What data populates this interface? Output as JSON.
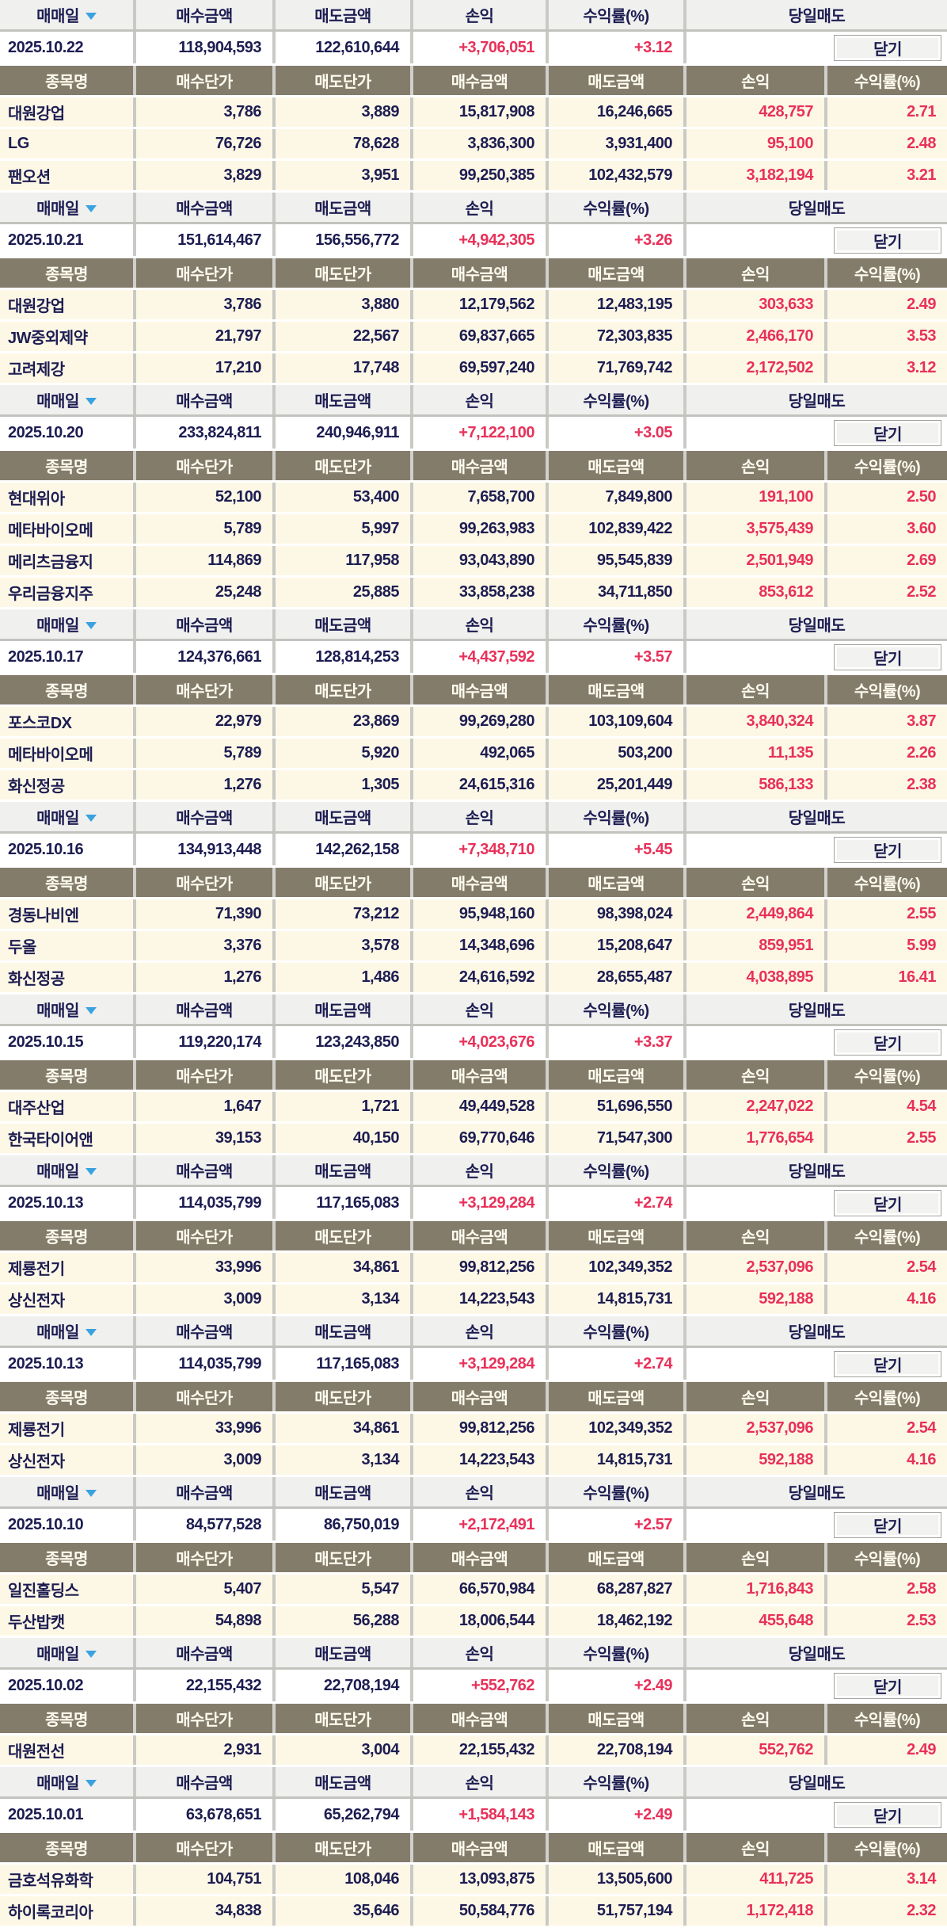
{
  "colors": {
    "accent_red": "#e8315a",
    "navy_text": "#1d1d52",
    "subheader_bg": "#847c6b",
    "stock_row_bg": "#fdf8e6",
    "header_bg": "#f0f0ef",
    "sort_arrow_blue": "#3aa2df"
  },
  "labels": {
    "date_header": [
      "매매일",
      "매수금액",
      "매도금액",
      "손익",
      "수익률(%)",
      "당일매도"
    ],
    "stock_header": [
      "종목명",
      "매수단가",
      "매도단가",
      "매수금액",
      "매도금액",
      "손익",
      "수익률(%)"
    ],
    "close": "닫기"
  },
  "sections": [
    {
      "date": "2025.10.22",
      "buy_amount": "118,904,593",
      "sell_amount": "122,610,644",
      "profit": "+3,706,051",
      "return_pct": "+3.12",
      "stocks": [
        {
          "name": "대원강업",
          "buy_price": "3,786",
          "sell_price": "3,889",
          "buy_amount": "15,817,908",
          "sell_amount": "16,246,665",
          "profit": "428,757",
          "return_pct": "2.71"
        },
        {
          "name": "LG",
          "buy_price": "76,726",
          "sell_price": "78,628",
          "buy_amount": "3,836,300",
          "sell_amount": "3,931,400",
          "profit": "95,100",
          "return_pct": "2.48"
        },
        {
          "name": "팬오션",
          "buy_price": "3,829",
          "sell_price": "3,951",
          "buy_amount": "99,250,385",
          "sell_amount": "102,432,579",
          "profit": "3,182,194",
          "return_pct": "3.21"
        }
      ]
    },
    {
      "date": "2025.10.21",
      "buy_amount": "151,614,467",
      "sell_amount": "156,556,772",
      "profit": "+4,942,305",
      "return_pct": "+3.26",
      "stocks": [
        {
          "name": "대원강업",
          "buy_price": "3,786",
          "sell_price": "3,880",
          "buy_amount": "12,179,562",
          "sell_amount": "12,483,195",
          "profit": "303,633",
          "return_pct": "2.49"
        },
        {
          "name": "JW중외제약",
          "buy_price": "21,797",
          "sell_price": "22,567",
          "buy_amount": "69,837,665",
          "sell_amount": "72,303,835",
          "profit": "2,466,170",
          "return_pct": "3.53"
        },
        {
          "name": "고려제강",
          "buy_price": "17,210",
          "sell_price": "17,748",
          "buy_amount": "69,597,240",
          "sell_amount": "71,769,742",
          "profit": "2,172,502",
          "return_pct": "3.12"
        }
      ]
    },
    {
      "date": "2025.10.20",
      "buy_amount": "233,824,811",
      "sell_amount": "240,946,911",
      "profit": "+7,122,100",
      "return_pct": "+3.05",
      "stocks": [
        {
          "name": "현대위아",
          "buy_price": "52,100",
          "sell_price": "53,400",
          "buy_amount": "7,658,700",
          "sell_amount": "7,849,800",
          "profit": "191,100",
          "return_pct": "2.50"
        },
        {
          "name": "메타바이오메",
          "buy_price": "5,789",
          "sell_price": "5,997",
          "buy_amount": "99,263,983",
          "sell_amount": "102,839,422",
          "profit": "3,575,439",
          "return_pct": "3.60"
        },
        {
          "name": "메리츠금융지",
          "buy_price": "114,869",
          "sell_price": "117,958",
          "buy_amount": "93,043,890",
          "sell_amount": "95,545,839",
          "profit": "2,501,949",
          "return_pct": "2.69"
        },
        {
          "name": "우리금융지주",
          "buy_price": "25,248",
          "sell_price": "25,885",
          "buy_amount": "33,858,238",
          "sell_amount": "34,711,850",
          "profit": "853,612",
          "return_pct": "2.52"
        }
      ]
    },
    {
      "date": "2025.10.17",
      "buy_amount": "124,376,661",
      "sell_amount": "128,814,253",
      "profit": "+4,437,592",
      "return_pct": "+3.57",
      "stocks": [
        {
          "name": "포스코DX",
          "buy_price": "22,979",
          "sell_price": "23,869",
          "buy_amount": "99,269,280",
          "sell_amount": "103,109,604",
          "profit": "3,840,324",
          "return_pct": "3.87"
        },
        {
          "name": "메타바이오메",
          "buy_price": "5,789",
          "sell_price": "5,920",
          "buy_amount": "492,065",
          "sell_amount": "503,200",
          "profit": "11,135",
          "return_pct": "2.26"
        },
        {
          "name": "화신정공",
          "buy_price": "1,276",
          "sell_price": "1,305",
          "buy_amount": "24,615,316",
          "sell_amount": "25,201,449",
          "profit": "586,133",
          "return_pct": "2.38"
        }
      ]
    },
    {
      "date": "2025.10.16",
      "buy_amount": "134,913,448",
      "sell_amount": "142,262,158",
      "profit": "+7,348,710",
      "return_pct": "+5.45",
      "stocks": [
        {
          "name": "경동나비엔",
          "buy_price": "71,390",
          "sell_price": "73,212",
          "buy_amount": "95,948,160",
          "sell_amount": "98,398,024",
          "profit": "2,449,864",
          "return_pct": "2.55"
        },
        {
          "name": "두올",
          "buy_price": "3,376",
          "sell_price": "3,578",
          "buy_amount": "14,348,696",
          "sell_amount": "15,208,647",
          "profit": "859,951",
          "return_pct": "5.99"
        },
        {
          "name": "화신정공",
          "buy_price": "1,276",
          "sell_price": "1,486",
          "buy_amount": "24,616,592",
          "sell_amount": "28,655,487",
          "profit": "4,038,895",
          "return_pct": "16.41"
        }
      ]
    },
    {
      "date": "2025.10.15",
      "buy_amount": "119,220,174",
      "sell_amount": "123,243,850",
      "profit": "+4,023,676",
      "return_pct": "+3.37",
      "stocks": [
        {
          "name": "대주산업",
          "buy_price": "1,647",
          "sell_price": "1,721",
          "buy_amount": "49,449,528",
          "sell_amount": "51,696,550",
          "profit": "2,247,022",
          "return_pct": "4.54"
        },
        {
          "name": "한국타이어앤",
          "buy_price": "39,153",
          "sell_price": "40,150",
          "buy_amount": "69,770,646",
          "sell_amount": "71,547,300",
          "profit": "1,776,654",
          "return_pct": "2.55"
        }
      ]
    },
    {
      "date": "2025.10.13",
      "buy_amount": "114,035,799",
      "sell_amount": "117,165,083",
      "profit": "+3,129,284",
      "return_pct": "+2.74",
      "stocks": [
        {
          "name": "제룡전기",
          "buy_price": "33,996",
          "sell_price": "34,861",
          "buy_amount": "99,812,256",
          "sell_amount": "102,349,352",
          "profit": "2,537,096",
          "return_pct": "2.54"
        },
        {
          "name": "상신전자",
          "buy_price": "3,009",
          "sell_price": "3,134",
          "buy_amount": "14,223,543",
          "sell_amount": "14,815,731",
          "profit": "592,188",
          "return_pct": "4.16"
        }
      ]
    },
    {
      "date": "2025.10.13",
      "buy_amount": "114,035,799",
      "sell_amount": "117,165,083",
      "profit": "+3,129,284",
      "return_pct": "+2.74",
      "stocks": [
        {
          "name": "제룡전기",
          "buy_price": "33,996",
          "sell_price": "34,861",
          "buy_amount": "99,812,256",
          "sell_amount": "102,349,352",
          "profit": "2,537,096",
          "return_pct": "2.54"
        },
        {
          "name": "상신전자",
          "buy_price": "3,009",
          "sell_price": "3,134",
          "buy_amount": "14,223,543",
          "sell_amount": "14,815,731",
          "profit": "592,188",
          "return_pct": "4.16"
        }
      ]
    },
    {
      "date": "2025.10.10",
      "buy_amount": "84,577,528",
      "sell_amount": "86,750,019",
      "profit": "+2,172,491",
      "return_pct": "+2.57",
      "stocks": [
        {
          "name": "일진홀딩스",
          "buy_price": "5,407",
          "sell_price": "5,547",
          "buy_amount": "66,570,984",
          "sell_amount": "68,287,827",
          "profit": "1,716,843",
          "return_pct": "2.58"
        },
        {
          "name": "두산밥캣",
          "buy_price": "54,898",
          "sell_price": "56,288",
          "buy_amount": "18,006,544",
          "sell_amount": "18,462,192",
          "profit": "455,648",
          "return_pct": "2.53"
        }
      ]
    },
    {
      "date": "2025.10.02",
      "buy_amount": "22,155,432",
      "sell_amount": "22,708,194",
      "profit": "+552,762",
      "return_pct": "+2.49",
      "stocks": [
        {
          "name": "대원전선",
          "buy_price": "2,931",
          "sell_price": "3,004",
          "buy_amount": "22,155,432",
          "sell_amount": "22,708,194",
          "profit": "552,762",
          "return_pct": "2.49"
        }
      ]
    },
    {
      "date": "2025.10.01",
      "buy_amount": "63,678,651",
      "sell_amount": "65,262,794",
      "profit": "+1,584,143",
      "return_pct": "+2.49",
      "stocks": [
        {
          "name": "금호석유화학",
          "buy_price": "104,751",
          "sell_price": "108,046",
          "buy_amount": "13,093,875",
          "sell_amount": "13,505,600",
          "profit": "411,725",
          "return_pct": "3.14"
        },
        {
          "name": "하이록코리아",
          "buy_price": "34,838",
          "sell_price": "35,646",
          "buy_amount": "50,584,776",
          "sell_amount": "51,757,194",
          "profit": "1,172,418",
          "return_pct": "2.32"
        }
      ]
    }
  ]
}
